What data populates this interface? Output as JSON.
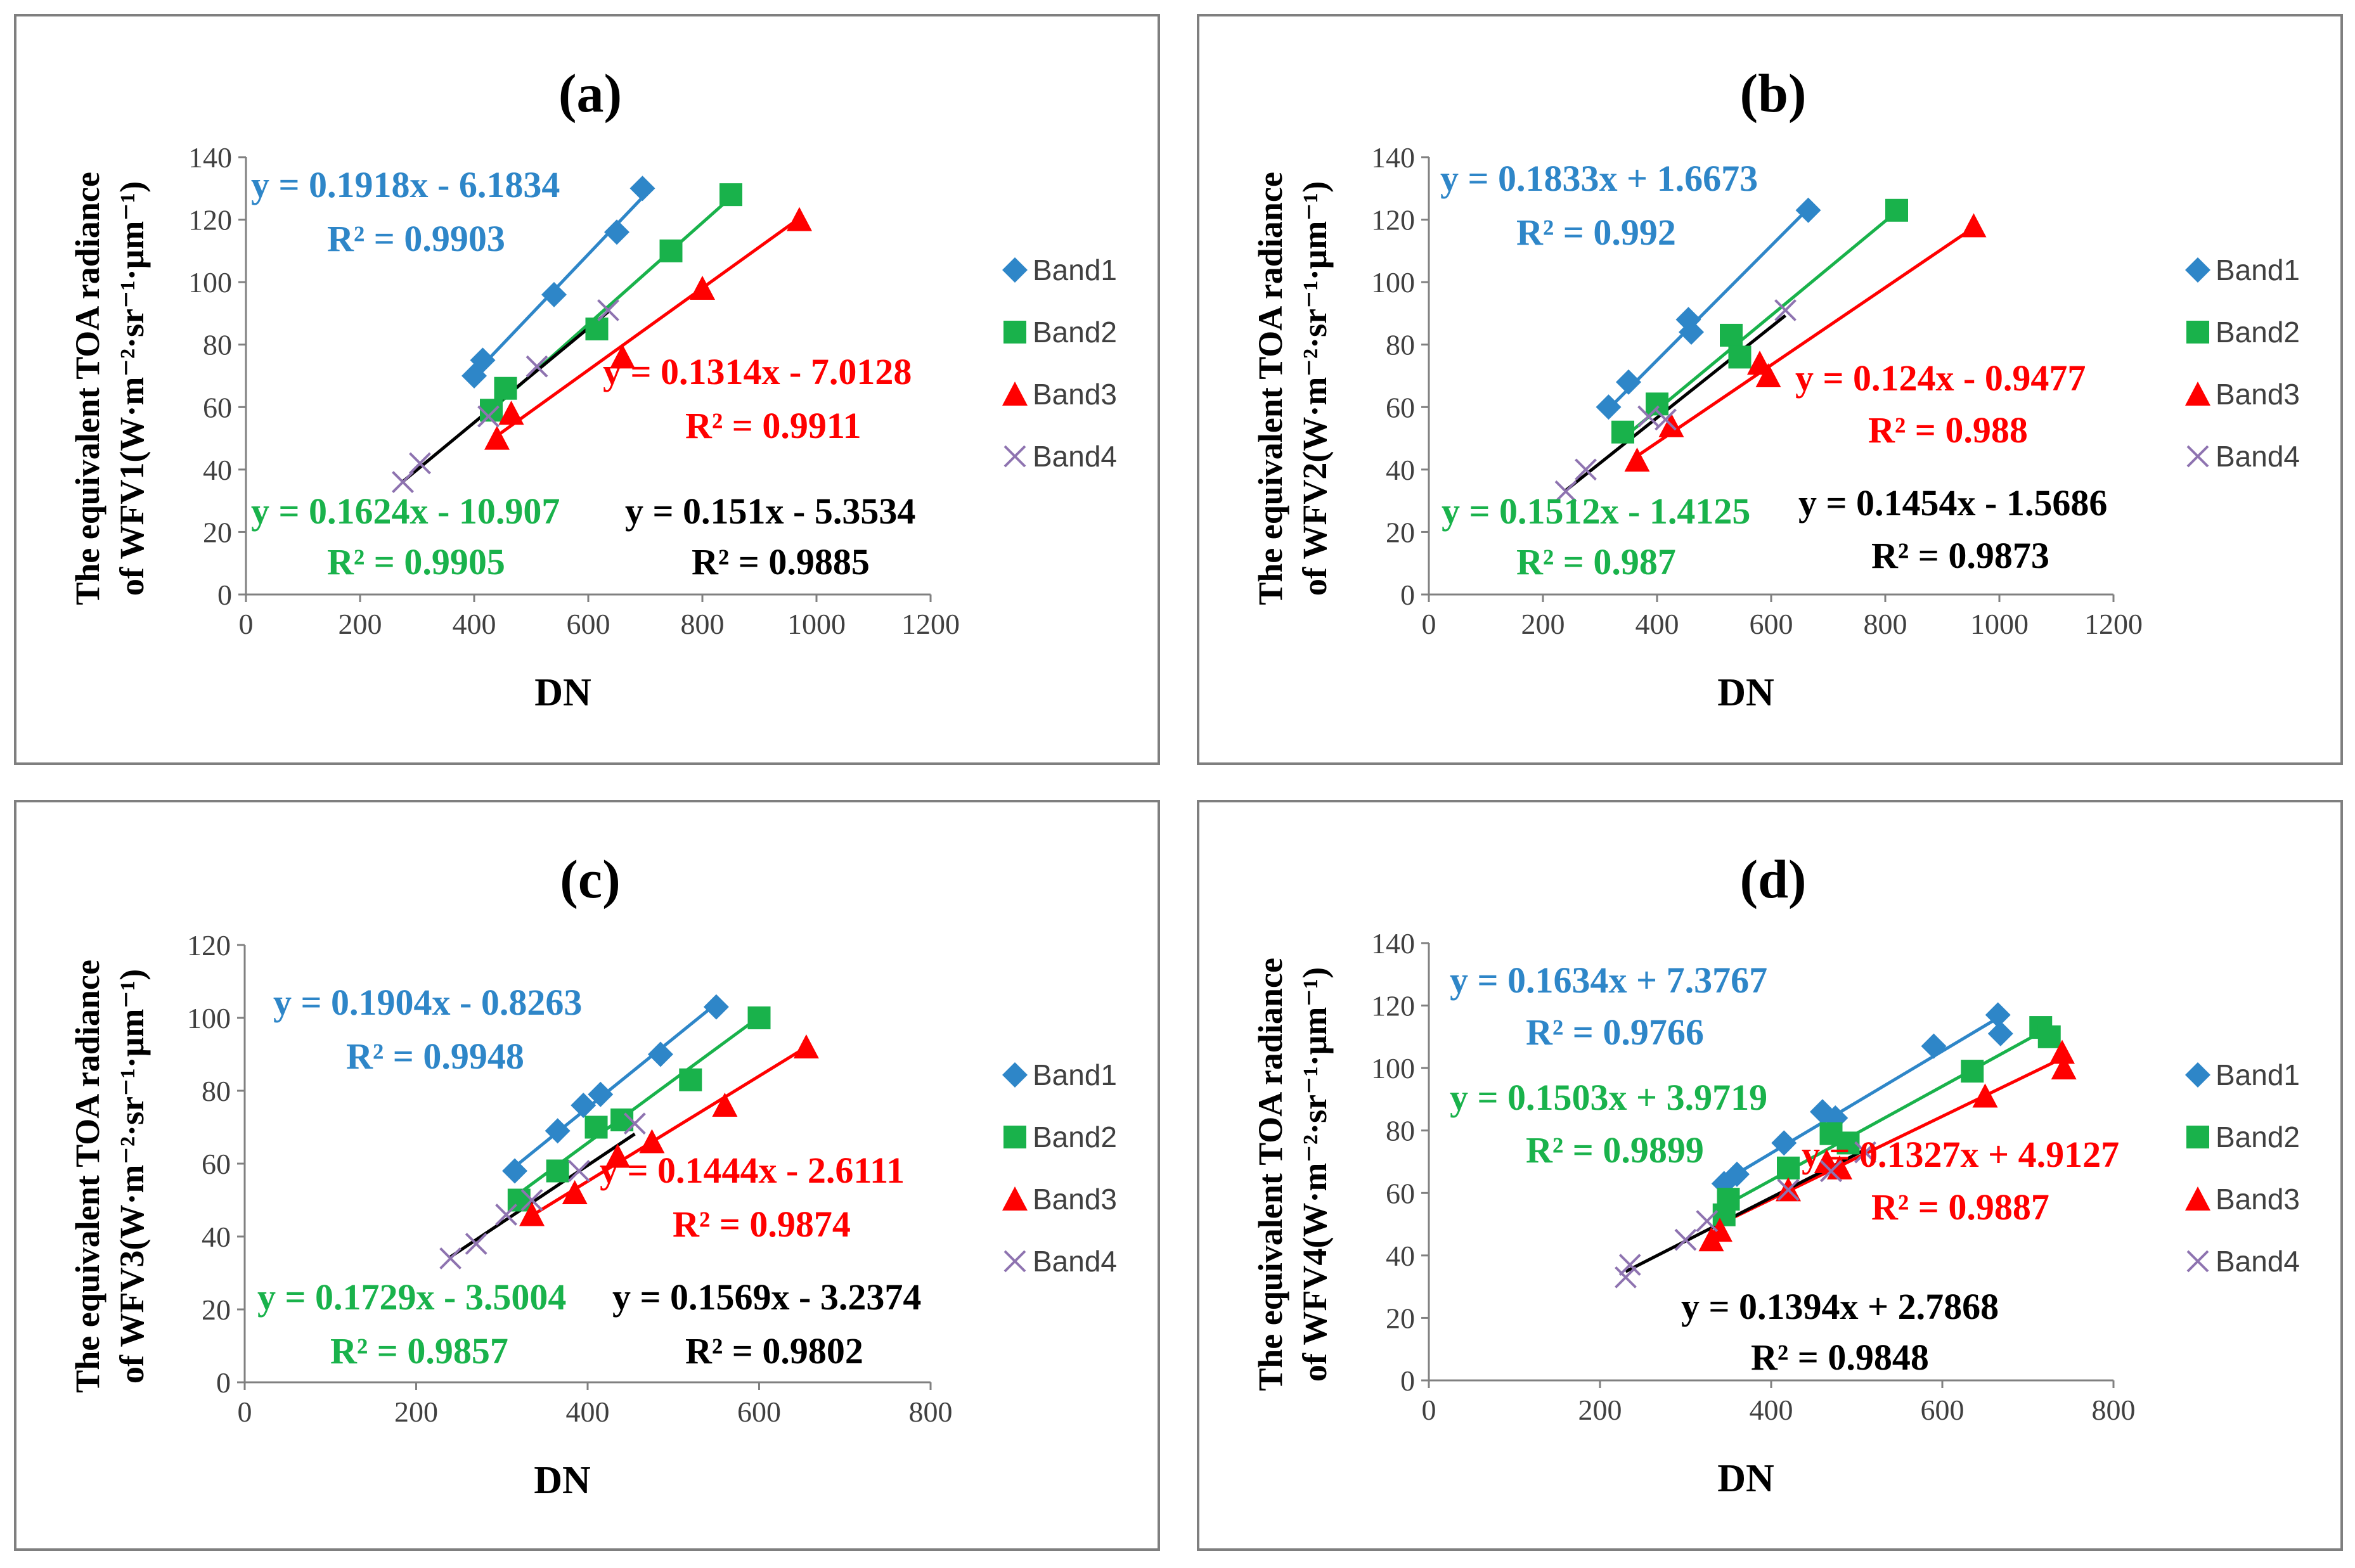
{
  "colors": {
    "band1": "#2e86c8",
    "band2": "#19b24b",
    "band3": "#ff0000",
    "band4": "#8e73b0",
    "fit4": "#000000",
    "eq1": "#2e86c8",
    "eq2": "#19b24b",
    "eq3": "#ff0000",
    "eq4": "#000000",
    "axis": "#808080",
    "tick_text": "#404040"
  },
  "chart_data": [
    {
      "panel": "(a)",
      "type": "scatter",
      "title": "(a)",
      "xlabel": "DN",
      "ylabel_line1": "The equivalent TOA radiance",
      "ylabel_line2": "of WFV1(W·m⁻²·sr⁻¹·μm⁻¹)",
      "xlim": [
        0,
        1200
      ],
      "ylim": [
        0,
        140
      ],
      "xticks": [
        "0",
        "200",
        "400",
        "600",
        "800",
        "1000",
        "1200"
      ],
      "yticks": [
        "0",
        "20",
        "40",
        "60",
        "80",
        "100",
        "120",
        "140"
      ],
      "legend": [
        "Band1",
        "Band2",
        "Band3",
        "Band4"
      ],
      "legend_position": "right",
      "series": [
        {
          "name": "Band1",
          "marker": "diamond",
          "x": [
            400,
            415,
            540,
            650,
            695
          ],
          "y": [
            70,
            75,
            96,
            116,
            130
          ],
          "fit": {
            "slope": 0.1918,
            "intercept": -6.1834
          },
          "equation": "y = 0.1918x - 6.1834",
          "r2": "R² = 0.9903"
        },
        {
          "name": "Band2",
          "marker": "square",
          "x": [
            430,
            455,
            615,
            745,
            850
          ],
          "y": [
            59,
            66,
            85,
            110,
            128
          ],
          "fit": {
            "slope": 0.1624,
            "intercept": -10.907
          },
          "equation": "y = 0.1624x - 10.907",
          "r2": "R² = 0.9905"
        },
        {
          "name": "Band3",
          "marker": "triangle",
          "x": [
            440,
            465,
            660,
            800,
            970
          ],
          "y": [
            50,
            58,
            76,
            98,
            120
          ],
          "fit": {
            "slope": 0.1314,
            "intercept": -7.0128
          },
          "equation": "y = 0.1314x - 7.0128",
          "r2": "R² = 0.9911"
        },
        {
          "name": "Band4",
          "marker": "x",
          "x": [
            275,
            305,
            425,
            510,
            635
          ],
          "y": [
            36,
            42,
            57,
            73,
            91
          ],
          "fit": {
            "slope": 0.151,
            "intercept": -5.3534
          },
          "equation": "y = 0.151x - 5.3534",
          "r2": "R² = 0.9885"
        }
      ]
    },
    {
      "panel": "(b)",
      "type": "scatter",
      "title": "(b)",
      "xlabel": "DN",
      "ylabel_line1": "The equivalent TOA radiance",
      "ylabel_line2": "of WFV2(W·m⁻²·sr⁻¹·μm⁻¹)",
      "xlim": [
        0,
        1200
      ],
      "ylim": [
        0,
        140
      ],
      "xticks": [
        "0",
        "200",
        "400",
        "600",
        "800",
        "1000",
        "1200"
      ],
      "yticks": [
        "0",
        "20",
        "40",
        "60",
        "80",
        "100",
        "120",
        "140"
      ],
      "legend": [
        "Band1",
        "Band2",
        "Band3",
        "Band4"
      ],
      "legend_position": "right",
      "series": [
        {
          "name": "Band1",
          "marker": "diamond",
          "x": [
            315,
            350,
            455,
            460,
            665
          ],
          "y": [
            60,
            68,
            88,
            84,
            123
          ],
          "fit": {
            "slope": 0.1833,
            "intercept": 1.6673
          },
          "equation": "y = 0.1833x + 1.6673",
          "r2": "R² = 0.992"
        },
        {
          "name": "Band2",
          "marker": "square",
          "x": [
            340,
            400,
            530,
            545,
            820
          ],
          "y": [
            52,
            61,
            83,
            76,
            123
          ],
          "fit": {
            "slope": 0.1512,
            "intercept": -1.4125
          },
          "equation": "y = 0.1512x - 1.4125",
          "r2": "R² = 0.987"
        },
        {
          "name": "Band3",
          "marker": "triangle",
          "x": [
            365,
            425,
            580,
            595,
            955
          ],
          "y": [
            43,
            54,
            74,
            70,
            118
          ],
          "fit": {
            "slope": 0.124,
            "intercept": -0.9477
          },
          "equation": "y = 0.124x - 0.9477",
          "r2": "R² = 0.988"
        },
        {
          "name": "Band4",
          "marker": "x",
          "x": [
            240,
            275,
            385,
            415,
            625
          ],
          "y": [
            33,
            40,
            57,
            56,
            91
          ],
          "fit": {
            "slope": 0.1454,
            "intercept": -1.5686
          },
          "equation": "y = 0.1454x - 1.5686",
          "r2": "R² = 0.9873"
        }
      ]
    },
    {
      "panel": "(c)",
      "type": "scatter",
      "title": "(c)",
      "xlabel": "DN",
      "ylabel_line1": "The equivalent TOA radiance",
      "ylabel_line2": "of WFV3(W·m⁻²·sr⁻¹·μm⁻¹)",
      "xlim": [
        0,
        800
      ],
      "ylim": [
        0,
        120
      ],
      "xticks": [
        "0",
        "200",
        "400",
        "600",
        "800"
      ],
      "yticks": [
        "0",
        "20",
        "40",
        "60",
        "80",
        "100",
        "120"
      ],
      "legend": [
        "Band1",
        "Band2",
        "Band3",
        "Band4"
      ],
      "legend_position": "right",
      "series": [
        {
          "name": "Band1",
          "marker": "diamond",
          "x": [
            315,
            365,
            395,
            415,
            485,
            550
          ],
          "y": [
            58,
            69,
            76,
            79,
            90,
            103
          ],
          "fit": {
            "slope": 0.1904,
            "intercept": -0.8263
          },
          "equation": "y = 0.1904x - 0.8263",
          "r2": "R² = 0.9948"
        },
        {
          "name": "Band2",
          "marker": "square",
          "x": [
            320,
            365,
            410,
            440,
            520,
            600
          ],
          "y": [
            50,
            58,
            70,
            72,
            83,
            100
          ],
          "fit": {
            "slope": 0.1729,
            "intercept": -3.5004
          },
          "equation": "y = 0.1729x - 3.5004",
          "r2": "R² = 0.9857"
        },
        {
          "name": "Band3",
          "marker": "triangle",
          "x": [
            335,
            385,
            435,
            475,
            560,
            655
          ],
          "y": [
            46,
            52,
            62,
            66,
            76,
            92
          ],
          "fit": {
            "slope": 0.1444,
            "intercept": -2.6111
          },
          "equation": "y = 0.1444x - 2.6111",
          "r2": "R² = 0.9874"
        },
        {
          "name": "Band4",
          "marker": "x",
          "x": [
            240,
            270,
            305,
            335,
            390,
            455
          ],
          "y": [
            34,
            38,
            46,
            50,
            58,
            71
          ],
          "fit": {
            "slope": 0.1569,
            "intercept": -3.2374
          },
          "equation": "y = 0.1569x - 3.2374",
          "r2": "R² = 0.9802"
        }
      ]
    },
    {
      "panel": "(d)",
      "type": "scatter",
      "title": "(d)",
      "xlabel": "DN",
      "ylabel_line1": "The equivalent TOA radiance",
      "ylabel_line2": "of WFV4(W·m⁻²·sr⁻¹·μm⁻¹)",
      "xlim": [
        0,
        800
      ],
      "ylim": [
        0,
        140
      ],
      "xticks": [
        "0",
        "200",
        "400",
        "600",
        "800"
      ],
      "yticks": [
        "0",
        "20",
        "40",
        "60",
        "80",
        "100",
        "120",
        "140"
      ],
      "legend": [
        "Band1",
        "Band2",
        "Band3",
        "Band4"
      ],
      "legend_position": "right",
      "series": [
        {
          "name": "Band1",
          "marker": "diamond",
          "x": [
            345,
            360,
            415,
            460,
            475,
            590,
            665,
            668
          ],
          "y": [
            63,
            66,
            76,
            86,
            84,
            107,
            117,
            111
          ],
          "fit": {
            "slope": 0.1634,
            "intercept": 7.3767
          },
          "equation": "y = 0.1634x + 7.3767",
          "r2": "R² = 0.9766"
        },
        {
          "name": "Band2",
          "marker": "square",
          "x": [
            345,
            350,
            420,
            470,
            490,
            635,
            715,
            725
          ],
          "y": [
            53,
            58,
            68,
            79,
            76,
            99,
            113,
            110
          ],
          "fit": {
            "slope": 0.1503,
            "intercept": 3.9719
          },
          "equation": "y = 0.1503x + 3.9719",
          "r2": "R² = 0.9899"
        },
        {
          "name": "Band3",
          "marker": "triangle",
          "x": [
            330,
            340,
            420,
            465,
            480,
            650,
            740,
            742
          ],
          "y": [
            45,
            48,
            61,
            70,
            68,
            91,
            105,
            100
          ],
          "fit": {
            "slope": 0.1327,
            "intercept": 4.9127
          },
          "equation": "y = 0.1327x + 4.9127",
          "r2": "R² = 0.9887"
        },
        {
          "name": "Band4",
          "marker": "x",
          "x": [
            230,
            235,
            300,
            325,
            420,
            470,
            510
          ],
          "y": [
            33,
            37,
            45,
            51,
            61,
            67,
            73
          ],
          "fit": {
            "slope": 0.1394,
            "intercept": 2.7868
          },
          "equation": "y = 0.1394x + 2.7868",
          "r2": "R² = 0.9848"
        }
      ]
    }
  ]
}
